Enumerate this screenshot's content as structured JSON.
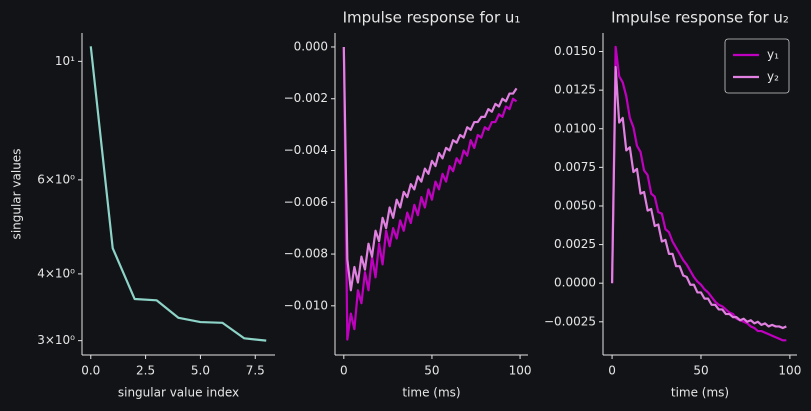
{
  "chart_data": [
    {
      "type": "line",
      "yscale": "log",
      "xlabel": "singular value index",
      "ylabel": "singular values",
      "x": [
        0,
        1,
        2,
        3,
        4,
        5,
        6,
        7,
        8
      ],
      "series": [
        {
          "color": "#8dd3c7",
          "values": [
            10.67,
            4.47,
            3.59,
            3.57,
            3.31,
            3.25,
            3.24,
            3.03,
            3.0
          ]
        }
      ],
      "xlim": [
        -0.4,
        8.4
      ],
      "ylim": [
        2.82,
        11.3
      ],
      "xticks": [
        {
          "value": 0,
          "label": "0.0"
        },
        2.5,
        {
          "value": 5,
          "label": "5.0"
        },
        7.5
      ],
      "yticks": [
        {
          "value": 3,
          "label": "3×10⁰"
        },
        {
          "value": 4,
          "label": "4×10⁰"
        },
        {
          "value": 6,
          "label": "6×10⁰"
        },
        {
          "value": 10,
          "label": "10¹"
        }
      ]
    },
    {
      "type": "line",
      "title": "Impulse response for u₁",
      "xlabel": "time (ms)",
      "x": [
        0,
        2,
        4,
        6,
        8,
        10,
        12,
        14,
        16,
        18,
        20,
        22,
        24,
        26,
        28,
        30,
        32,
        34,
        36,
        38,
        40,
        42,
        44,
        46,
        48,
        50,
        52,
        54,
        56,
        58,
        60,
        62,
        64,
        66,
        68,
        70,
        72,
        74,
        76,
        78,
        80,
        82,
        84,
        86,
        88,
        90,
        92,
        94,
        96,
        98
      ],
      "series": [
        {
          "color": "#c000c0",
          "values": [
            0,
            -0.0113,
            -0.0103,
            -0.0109,
            -0.0094,
            -0.0099,
            -0.0087,
            -0.0094,
            -0.0081,
            -0.0089,
            -0.0076,
            -0.0084,
            -0.0071,
            -0.0077,
            -0.007,
            -0.0074,
            -0.0067,
            -0.0071,
            -0.0064,
            -0.0068,
            -0.0061,
            -0.0065,
            -0.0058,
            -0.0062,
            -0.0055,
            -0.0059,
            -0.0052,
            -0.0055,
            -0.0049,
            -0.0052,
            -0.0046,
            -0.0048,
            -0.0043,
            -0.0045,
            -0.004,
            -0.0042,
            -0.0036,
            -0.0039,
            -0.0034,
            -0.0035,
            -0.0031,
            -0.0032,
            -0.0029,
            -0.0029,
            -0.0026,
            -0.0027,
            -0.0023,
            -0.0024,
            -0.002,
            -0.0021
          ]
        },
        {
          "color": "#e080e0",
          "values": [
            0,
            -0.0082,
            -0.0094,
            -0.0085,
            -0.0091,
            -0.0081,
            -0.0086,
            -0.0076,
            -0.0081,
            -0.0071,
            -0.0075,
            -0.0066,
            -0.007,
            -0.0062,
            -0.0066,
            -0.0059,
            -0.0062,
            -0.0056,
            -0.0058,
            -0.0053,
            -0.0055,
            -0.005,
            -0.0052,
            -0.0047,
            -0.0049,
            -0.0044,
            -0.0046,
            -0.0041,
            -0.0043,
            -0.0039,
            -0.004,
            -0.0036,
            -0.0037,
            -0.0034,
            -0.0035,
            -0.0031,
            -0.0032,
            -0.0029,
            -0.0029,
            -0.0027,
            -0.0027,
            -0.0024,
            -0.0025,
            -0.0022,
            -0.0023,
            -0.002,
            -0.0021,
            -0.0018,
            -0.0018,
            -0.0016
          ]
        }
      ],
      "xlim": [
        -5,
        104.5
      ],
      "ylim": [
        -0.0119,
        0.00054
      ],
      "xticks": [
        0,
        50,
        100
      ],
      "yticks": [
        {
          "value": -0.01,
          "label": "−0.010"
        },
        {
          "value": -0.008,
          "label": "−0.008"
        },
        {
          "value": -0.006,
          "label": "−0.006"
        },
        {
          "value": -0.004,
          "label": "−0.004"
        },
        {
          "value": -0.002,
          "label": "−0.002"
        },
        {
          "value": 0,
          "label": "0.000"
        }
      ]
    },
    {
      "type": "line",
      "title": "Impulse response for u₂",
      "xlabel": "time (ms)",
      "legend": "upper right",
      "x": [
        0,
        2,
        4,
        6,
        8,
        10,
        12,
        14,
        16,
        18,
        20,
        22,
        24,
        26,
        28,
        30,
        32,
        34,
        36,
        38,
        40,
        42,
        44,
        46,
        48,
        50,
        52,
        54,
        56,
        58,
        60,
        62,
        64,
        66,
        68,
        70,
        72,
        74,
        76,
        78,
        80,
        82,
        84,
        86,
        88,
        90,
        92,
        94,
        96,
        98
      ],
      "series": [
        {
          "name": "y₁",
          "color": "#c000c0",
          "values": [
            0,
            0.0153,
            0.0134,
            0.013,
            0.0121,
            0.0107,
            0.0101,
            0.0089,
            0.0085,
            0.0073,
            0.007,
            0.0058,
            0.0056,
            0.0046,
            0.0045,
            0.0035,
            0.0033,
            0.0027,
            0.0023,
            0.0019,
            0.0015,
            0.0012,
            0.0008,
            0.0004,
            0.0001,
            -0.0001,
            -0.0004,
            -0.0006,
            -0.0009,
            -0.0012,
            -0.0014,
            -0.0015,
            -0.0017,
            -0.0019,
            -0.002,
            -0.0023,
            -0.0024,
            -0.0025,
            -0.0026,
            -0.0028,
            -0.0029,
            -0.0031,
            -0.0031,
            -0.0032,
            -0.0033,
            -0.0034,
            -0.0035,
            -0.0036,
            -0.0037,
            -0.0037
          ]
        },
        {
          "name": "y₂",
          "color": "#e080e0",
          "values": [
            0,
            0.014,
            0.0104,
            0.0107,
            0.0086,
            0.0088,
            0.0072,
            0.0074,
            0.0058,
            0.0059,
            0.0047,
            0.0048,
            0.0037,
            0.0038,
            0.0027,
            0.0028,
            0.0019,
            0.0019,
            0.0011,
            0.0011,
            0.0005,
            0.0004,
            -0.0001,
            -0.0001,
            -0.0006,
            -0.0006,
            -0.001,
            -0.001,
            -0.0014,
            -0.0014,
            -0.0017,
            -0.0017,
            -0.002,
            -0.002,
            -0.0022,
            -0.0022,
            -0.0024,
            -0.0023,
            -0.0025,
            -0.0024,
            -0.0026,
            -0.0025,
            -0.0027,
            -0.0026,
            -0.0028,
            -0.0027,
            -0.0028,
            -0.0028,
            -0.0029,
            -0.0028
          ]
        }
      ],
      "xlim": [
        -5.1,
        104
      ],
      "ylim": [
        -0.00465,
        0.0162
      ],
      "xticks": [
        0,
        50,
        100
      ],
      "yticks": [
        {
          "value": -0.0025,
          "label": "−0.0025"
        },
        {
          "value": 0,
          "label": "0.0000"
        },
        {
          "value": 0.0025,
          "label": "0.0025"
        },
        {
          "value": 0.005,
          "label": "0.0050"
        },
        {
          "value": 0.0075,
          "label": "0.0075"
        },
        {
          "value": 0.01,
          "label": "0.0100"
        },
        {
          "value": 0.0125,
          "label": "0.0125"
        },
        {
          "value": 0.015,
          "label": "0.0150"
        }
      ]
    }
  ]
}
